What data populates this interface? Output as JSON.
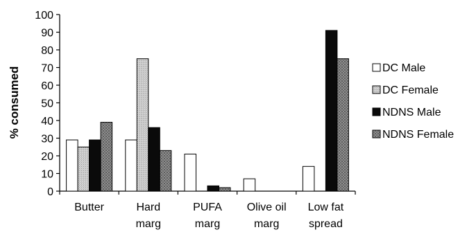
{
  "chart_data": {
    "type": "bar",
    "title": "",
    "xlabel": "",
    "ylabel": "% consumed",
    "ylim": [
      0,
      100
    ],
    "yticks": [
      0,
      10,
      20,
      30,
      40,
      50,
      60,
      70,
      80,
      90,
      100
    ],
    "grid": false,
    "legend": "right",
    "categories": [
      [
        "Butter"
      ],
      [
        "Hard",
        "marg"
      ],
      [
        "PUFA",
        "marg"
      ],
      [
        "Olive oil",
        "marg"
      ],
      [
        "Low fat",
        "spread"
      ]
    ],
    "series": [
      {
        "name": "DC Male",
        "values": [
          29,
          29,
          21,
          7,
          14
        ],
        "color": "#ffffff",
        "pattern": "none"
      },
      {
        "name": "DC Female",
        "values": [
          25,
          75,
          0,
          0,
          0
        ],
        "color": "#c8c8c8",
        "pattern": "fine"
      },
      {
        "name": "NDNS Male",
        "values": [
          29,
          36,
          3,
          0,
          91
        ],
        "color": "#0a0a0a",
        "pattern": "none"
      },
      {
        "name": "NDNS Female",
        "values": [
          39,
          23,
          2,
          0,
          75
        ],
        "color": "#8a8a8a",
        "pattern": "coarse"
      }
    ]
  }
}
